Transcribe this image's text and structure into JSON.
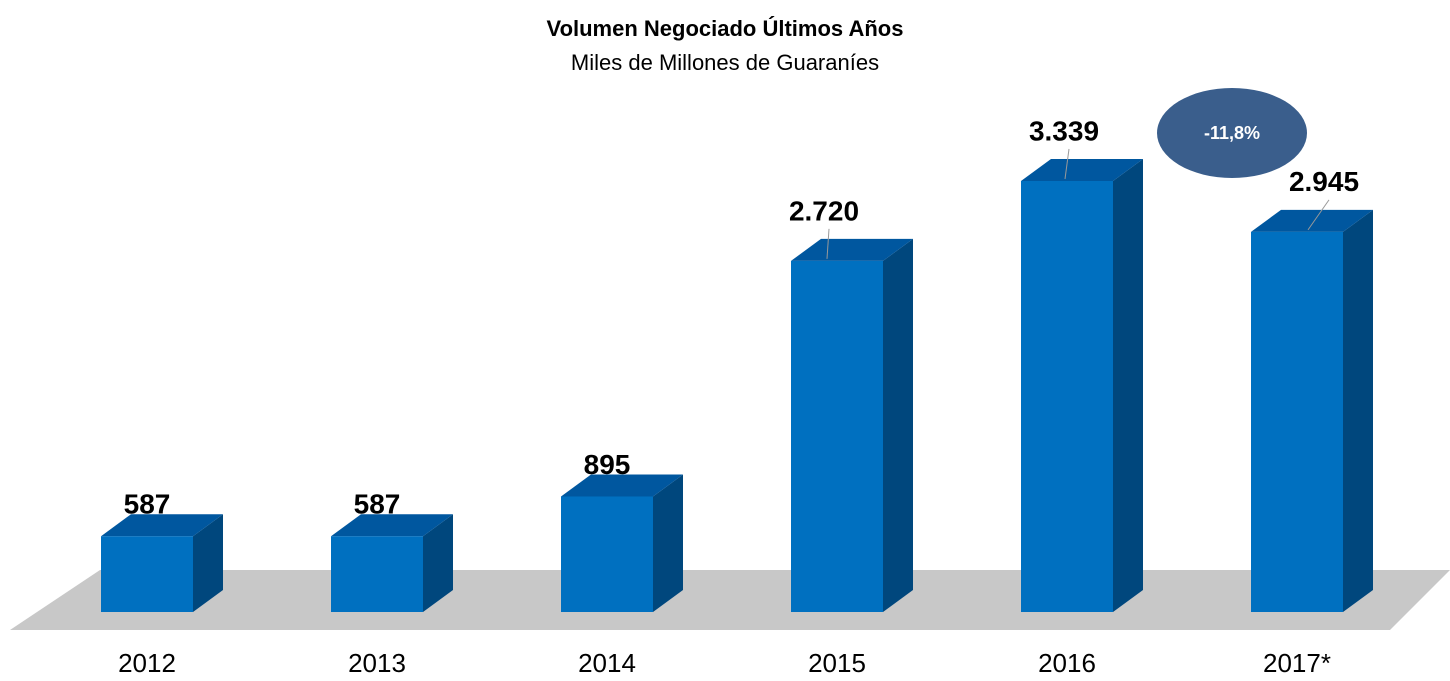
{
  "chart_data": {
    "type": "bar3d",
    "title": "Volumen Negociado Últimos Años",
    "subtitle": "Miles de Millones de Guaraníes",
    "categories": [
      "2012",
      "2013",
      "2014",
      "2015",
      "2016",
      "2017*"
    ],
    "values": [
      587,
      587,
      895,
      2720,
      3339,
      2945
    ],
    "value_labels": [
      "587",
      "587",
      "895",
      "2.720",
      "3.339",
      "2.945"
    ],
    "color": "#0070c0",
    "annotations": [
      {
        "text": "-11,8%"
      }
    ]
  }
}
